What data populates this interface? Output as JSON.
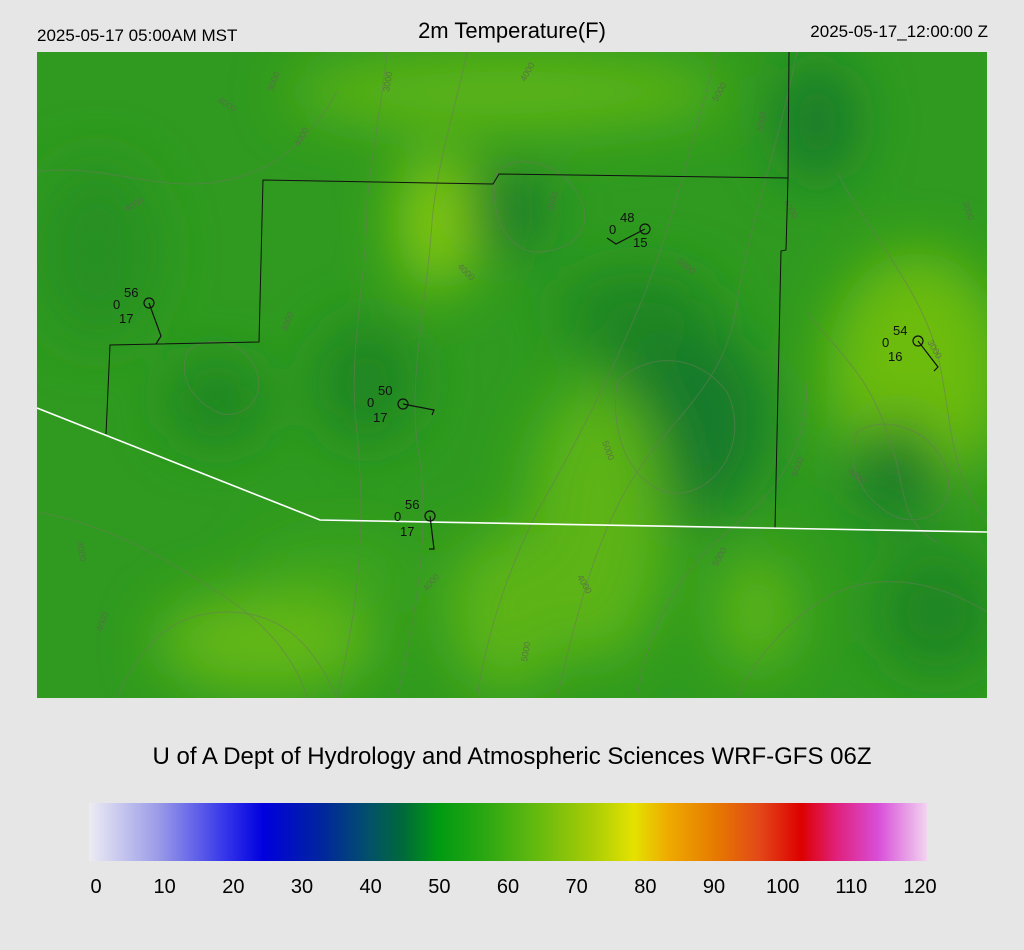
{
  "header": {
    "local_time": "2025-05-17 05:00AM MST",
    "title": "2m Temperature(F)",
    "valid_time": "2025-05-17_12:00:00 Z"
  },
  "footer": {
    "credit": "U of A Dept of Hydrology and Atmospheric Sciences WRF-GFS 06Z"
  },
  "colors": {
    "page_bg": "#e6e6e6",
    "field_base": "#2f9a1f",
    "field_dark": "#137a2a",
    "field_light": "#6cbc10",
    "boundary": "#111111",
    "state_line": "#ffffff",
    "contour": "#6b7a5c"
  },
  "contour_labels": [
    "3000",
    "3000",
    "4000",
    "4000",
    "4000",
    "5000",
    "5000",
    "4000",
    "3000",
    "4000",
    "5000",
    "4000",
    "4000",
    "3000",
    "5000",
    "3000",
    "4000",
    "5000",
    "4000",
    "5000",
    "4000",
    "3000",
    "4000",
    "5000"
  ],
  "stations": [
    {
      "temp": "56",
      "left": "0",
      "right": "17",
      "wind": "ssw"
    },
    {
      "temp": "48",
      "left": "0",
      "right": "15",
      "wind": "sw"
    },
    {
      "temp": "54",
      "left": "0",
      "right": "16",
      "wind": "ne"
    },
    {
      "temp": "50",
      "left": "0",
      "right": "17",
      "wind": "e"
    },
    {
      "temp": "56",
      "left": "0",
      "right": "17",
      "wind": "s"
    }
  ],
  "colorbar": {
    "min": 0,
    "max": 120,
    "ticks": [
      "0",
      "10",
      "20",
      "30",
      "40",
      "50",
      "60",
      "70",
      "80",
      "90",
      "100",
      "110",
      "120"
    ],
    "stops": [
      {
        "v": 0,
        "c": "#ececf4"
      },
      {
        "v": 10,
        "c": "#9a9ae8"
      },
      {
        "v": 20,
        "c": "#3030ea"
      },
      {
        "v": 25,
        "c": "#0000dd"
      },
      {
        "v": 33,
        "c": "#0024a0"
      },
      {
        "v": 40,
        "c": "#03506a"
      },
      {
        "v": 45,
        "c": "#006a3a"
      },
      {
        "v": 50,
        "c": "#009a12"
      },
      {
        "v": 57,
        "c": "#2da812"
      },
      {
        "v": 65,
        "c": "#6cbc0e"
      },
      {
        "v": 72,
        "c": "#a8cc06"
      },
      {
        "v": 78,
        "c": "#e4e200"
      },
      {
        "v": 83,
        "c": "#eeaa00"
      },
      {
        "v": 90,
        "c": "#e67800"
      },
      {
        "v": 96,
        "c": "#e24818"
      },
      {
        "v": 102,
        "c": "#dd0000"
      },
      {
        "v": 107,
        "c": "#e0207a"
      },
      {
        "v": 113,
        "c": "#d84ed8"
      },
      {
        "v": 120,
        "c": "#f2d4f0"
      }
    ]
  }
}
